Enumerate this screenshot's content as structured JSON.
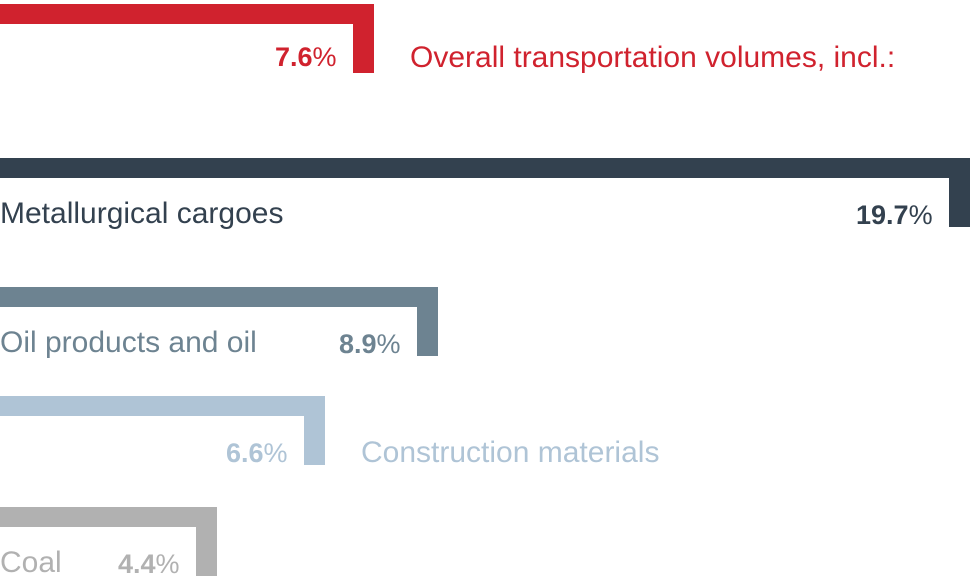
{
  "chart_data": {
    "type": "bar",
    "orientation": "horizontal",
    "unit": "%",
    "categories": [
      "Overall transportation volumes, incl.:",
      "Metallurgical cargoes",
      "Oil products and oil",
      "Construction materials",
      "Coal"
    ],
    "values": [
      7.6,
      19.7,
      8.9,
      6.6,
      4.4
    ],
    "value_labels": [
      "7.6",
      "19.7",
      "8.9",
      "6.6",
      "4.4"
    ],
    "colors": [
      "#d0222e",
      "#33414f",
      "#6d8391",
      "#afc4d6",
      "#b1b1b1"
    ],
    "xlim": [
      0,
      19.7
    ],
    "grid": false,
    "legend": "none",
    "title": "",
    "xlabel": "",
    "ylabel": ""
  }
}
